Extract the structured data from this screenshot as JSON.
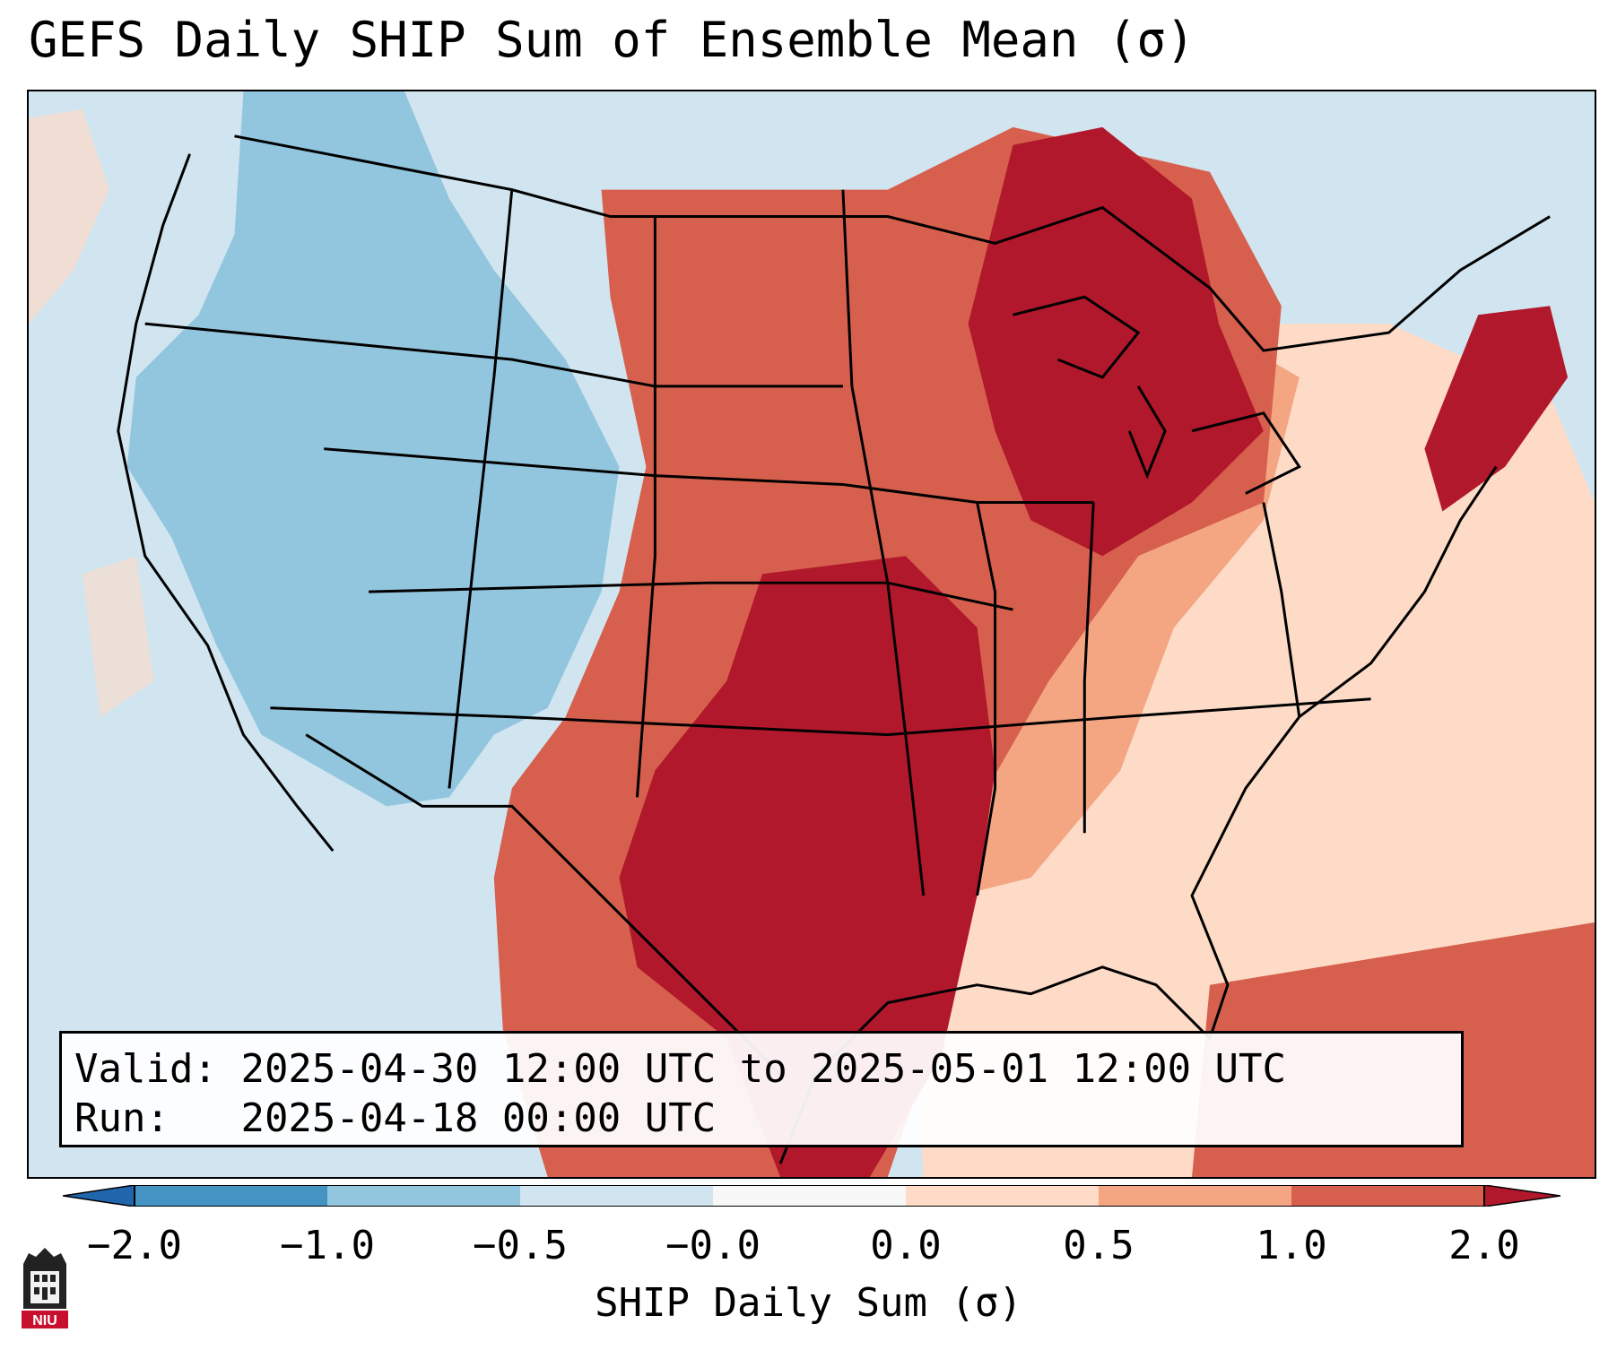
{
  "title": "GEFS Daily SHIP Sum of Ensemble Mean (σ)",
  "info": {
    "valid_label": "Valid:",
    "valid_value": "2025-04-30 12:00 UTC to 2025-05-01 12:00 UTC",
    "run_label": "Run:",
    "run_value": "2025-04-18 00:00 UTC"
  },
  "colorbar": {
    "label": "SHIP Daily Sum (σ)",
    "ticks": [
      "−2.0",
      "−1.0",
      "−0.5",
      "−0.0",
      "0.0",
      "0.5",
      "1.0",
      "2.0"
    ],
    "colors": [
      "#2166ac",
      "#4393c3",
      "#92c5de",
      "#d1e5f0",
      "#f7f7f7",
      "#fddbc7",
      "#f4a582",
      "#d6604d",
      "#b2182b"
    ],
    "extend": "both"
  },
  "map_regions": {
    "background": "#d1e5f0",
    "west_anomaly": "#92c5de",
    "plains_anomaly": "#d6604d",
    "southern_plains_max": "#b2182b",
    "east_anomaly": "#f4a582",
    "atlantic_anomaly": "#fddbc7"
  },
  "logo": {
    "text": "NIU",
    "icon": "niu-building-logo-icon"
  }
}
